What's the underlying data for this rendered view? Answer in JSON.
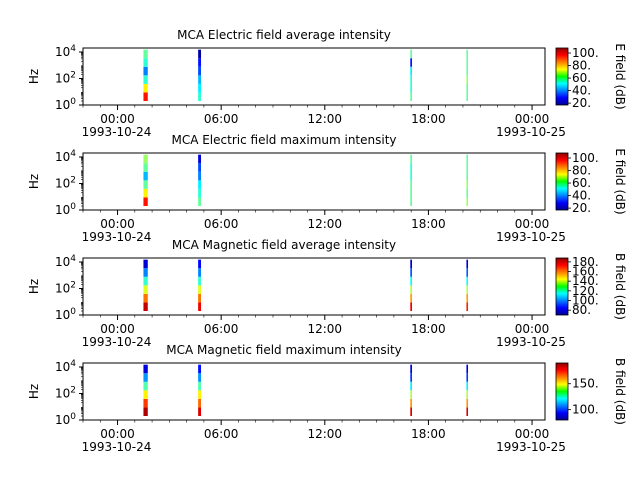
{
  "figure": {
    "background": "#ffffff",
    "panel_background": "#ffffff"
  },
  "chart_data": [
    {
      "type": "heatmap",
      "title": "MCA  Electric field average intensity",
      "ylabel": "Hz",
      "yscale": "log",
      "ylim": [
        1,
        20000
      ],
      "y_ticks": [
        "10^0",
        "10^2",
        "10^4"
      ],
      "xlim": [
        "1993-10-23 22:00",
        "1993-10-25 00:45"
      ],
      "x_ticks": [
        "00:00",
        "06:00",
        "12:00",
        "18:00",
        "00:00"
      ],
      "x_date_labels": [
        "1993-10-24",
        "1993-10-25"
      ],
      "colorbar": {
        "label": "E field (dB)",
        "range": [
          17,
          108
        ],
        "ticks": [
          20,
          40,
          60,
          80,
          100
        ],
        "tick_labels": [
          "20.",
          "40.",
          "60.",
          "80.",
          "100."
        ]
      },
      "bursts": [
        {
          "start": "1993-10-24 01:30",
          "end": "1993-10-24 01:45",
          "values_low_to_high": [
            95,
            75,
            55,
            40,
            55,
            60
          ]
        },
        {
          "start": "1993-10-24 04:40",
          "end": "1993-10-24 04:50",
          "values_low_to_high": [
            55,
            50,
            45,
            35,
            30,
            20
          ]
        },
        {
          "start": "1993-10-24 16:57",
          "end": "1993-10-24 17:03",
          "values_low_to_high": [
            60,
            55,
            55,
            50,
            30,
            60
          ]
        },
        {
          "start": "1993-10-24 20:12",
          "end": "1993-10-24 20:17",
          "values_low_to_high": [
            60,
            60,
            65,
            60,
            60,
            60
          ]
        }
      ]
    },
    {
      "type": "heatmap",
      "title": "MCA  Electric field maximum intensity",
      "ylabel": "Hz",
      "yscale": "log",
      "ylim": [
        1,
        20000
      ],
      "y_ticks": [
        "10^0",
        "10^2",
        "10^4"
      ],
      "xlim": [
        "1993-10-23 22:00",
        "1993-10-25 00:45"
      ],
      "x_ticks": [
        "00:00",
        "06:00",
        "12:00",
        "18:00",
        "00:00"
      ],
      "x_date_labels": [
        "1993-10-24",
        "1993-10-25"
      ],
      "colorbar": {
        "label": "E field (dB)",
        "range": [
          17,
          108
        ],
        "ticks": [
          20,
          40,
          60,
          80,
          100
        ],
        "tick_labels": [
          "20.",
          "40.",
          "60.",
          "80.",
          "100."
        ]
      },
      "bursts": [
        {
          "start": "1993-10-24 01:30",
          "end": "1993-10-24 01:45",
          "values_low_to_high": [
            95,
            75,
            60,
            45,
            60,
            65
          ]
        },
        {
          "start": "1993-10-24 04:40",
          "end": "1993-10-24 04:50",
          "values_low_to_high": [
            60,
            55,
            50,
            40,
            35,
            25
          ]
        },
        {
          "start": "1993-10-24 16:57",
          "end": "1993-10-24 17:03",
          "values_low_to_high": [
            60,
            60,
            60,
            55,
            55,
            60
          ]
        },
        {
          "start": "1993-10-24 20:12",
          "end": "1993-10-24 20:17",
          "values_low_to_high": [
            65,
            60,
            65,
            60,
            60,
            60
          ]
        }
      ]
    },
    {
      "type": "heatmap",
      "title": "MCA  Magnetic field average intensity",
      "ylabel": "Hz",
      "yscale": "log",
      "ylim": [
        1,
        20000
      ],
      "y_ticks": [
        "10^0",
        "10^2",
        "10^4"
      ],
      "xlim": [
        "1993-10-23 22:00",
        "1993-10-25 00:45"
      ],
      "x_ticks": [
        "00:00",
        "06:00",
        "12:00",
        "18:00",
        "00:00"
      ],
      "x_date_labels": [
        "1993-10-24",
        "1993-10-25"
      ],
      "colorbar": {
        "label": "B field (dB)",
        "range": [
          70,
          188
        ],
        "ticks": [
          80,
          100,
          120,
          140,
          160,
          180
        ],
        "tick_labels": [
          "80.",
          "100.",
          "120.",
          "140.",
          "160.",
          "180."
        ]
      },
      "bursts": [
        {
          "start": "1993-10-24 01:30",
          "end": "1993-10-24 01:45",
          "values_low_to_high": [
            180,
            160,
            140,
            120,
            100,
            80
          ]
        },
        {
          "start": "1993-10-24 04:40",
          "end": "1993-10-24 04:50",
          "values_low_to_high": [
            175,
            160,
            140,
            120,
            100,
            85
          ]
        },
        {
          "start": "1993-10-24 16:57",
          "end": "1993-10-24 17:03",
          "values_low_to_high": [
            175,
            155,
            135,
            115,
            95,
            80
          ]
        },
        {
          "start": "1993-10-24 20:12",
          "end": "1993-10-24 20:17",
          "values_low_to_high": [
            170,
            155,
            135,
            115,
            95,
            80
          ]
        }
      ]
    },
    {
      "type": "heatmap",
      "title": "MCA  Magnetic field maximum intensity",
      "ylabel": "Hz",
      "yscale": "log",
      "ylim": [
        1,
        20000
      ],
      "y_ticks": [
        "10^0",
        "10^2",
        "10^4"
      ],
      "xlim": [
        "1993-10-23 22:00",
        "1993-10-25 00:45"
      ],
      "x_ticks": [
        "00:00",
        "06:00",
        "12:00",
        "18:00",
        "00:00"
      ],
      "x_date_labels": [
        "1993-10-24",
        "1993-10-25"
      ],
      "colorbar": {
        "label": "B field (dB)",
        "range": [
          80,
          190
        ],
        "ticks": [
          100,
          150
        ],
        "tick_labels": [
          "100.",
          "150."
        ]
      },
      "bursts": [
        {
          "start": "1993-10-24 01:30",
          "end": "1993-10-24 01:45",
          "values_low_to_high": [
            185,
            170,
            150,
            130,
            110,
            90
          ]
        },
        {
          "start": "1993-10-24 04:40",
          "end": "1993-10-24 04:50",
          "values_low_to_high": [
            180,
            165,
            150,
            130,
            110,
            95
          ]
        },
        {
          "start": "1993-10-24 16:57",
          "end": "1993-10-24 17:03",
          "values_low_to_high": [
            180,
            160,
            140,
            120,
            100,
            90
          ]
        },
        {
          "start": "1993-10-24 20:12",
          "end": "1993-10-24 20:17",
          "values_low_to_high": [
            180,
            160,
            140,
            120,
            100,
            90
          ]
        }
      ]
    }
  ]
}
